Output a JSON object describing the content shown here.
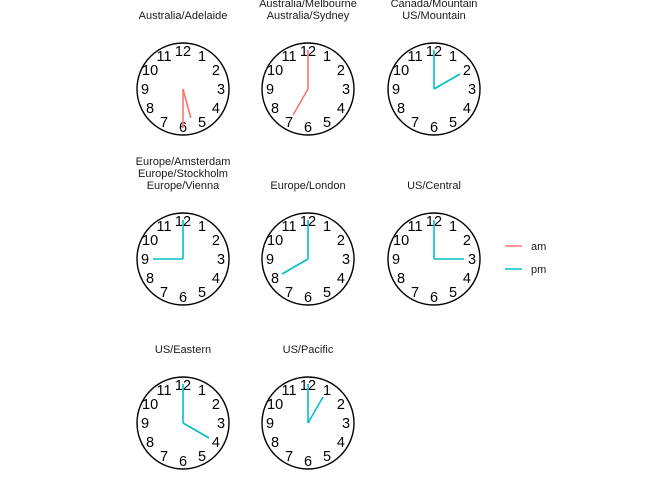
{
  "chart_data": {
    "type": "clock-facets",
    "title": "",
    "numerals": [
      "12",
      "1",
      "2",
      "3",
      "4",
      "5",
      "6",
      "7",
      "8",
      "9",
      "10",
      "11"
    ],
    "colors": {
      "am": "#F8766D",
      "pm": "#00BFC4",
      "face": "#000000"
    },
    "legend": {
      "placement": "right",
      "entries": [
        {
          "label": "am",
          "color": "#F8766D"
        },
        {
          "label": "pm",
          "color": "#00BFC4"
        }
      ]
    },
    "clocks": [
      {
        "title": [
          "Australia/Adelaide"
        ],
        "hour": 5.5,
        "minute": 30,
        "period": "am"
      },
      {
        "title": [
          "Australia/Melbourne",
          "Australia/Sydney"
        ],
        "hour": 7,
        "minute": 0,
        "period": "am"
      },
      {
        "title": [
          "Canada/Mountain",
          "US/Mountain"
        ],
        "hour": 2,
        "minute": 0,
        "period": "pm"
      },
      {
        "title": [
          "Europe/Amsterdam",
          "Europe/Stockholm",
          "Europe/Vienna"
        ],
        "hour": 9,
        "minute": 0,
        "period": "pm"
      },
      {
        "title": [
          "Europe/London"
        ],
        "hour": 8,
        "minute": 0,
        "period": "pm"
      },
      {
        "title": [
          "US/Central"
        ],
        "hour": 3,
        "minute": 0,
        "period": "pm"
      },
      {
        "title": [
          "US/Eastern"
        ],
        "hour": 4,
        "minute": 0,
        "period": "pm"
      },
      {
        "title": [
          "US/Pacific"
        ],
        "hour": 1,
        "minute": 0,
        "period": "pm"
      }
    ]
  }
}
